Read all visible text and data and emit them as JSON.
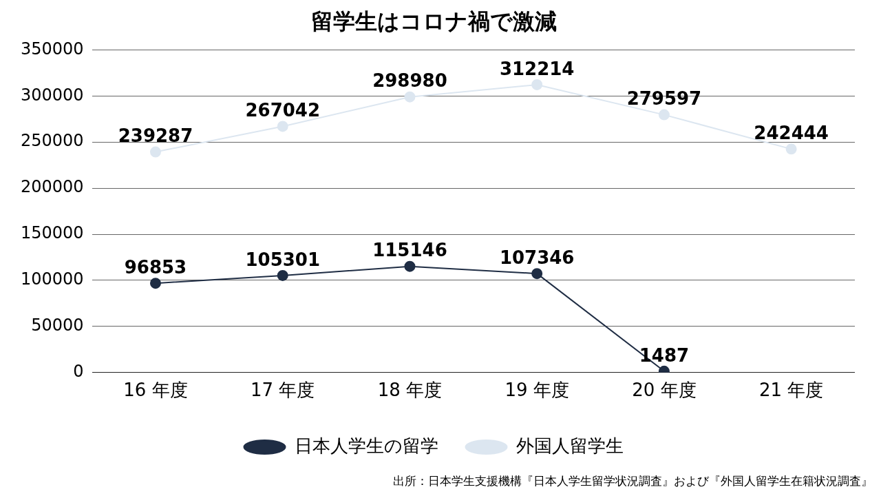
{
  "chart_data": {
    "type": "line",
    "title": "留学生はコロナ禍で激減",
    "categories": [
      "16 年度",
      "17 年度",
      "18 年度",
      "19 年度",
      "20 年度",
      "21 年度"
    ],
    "series": [
      {
        "name": "日本人学生の留学",
        "color": "#1f2d44",
        "values": [
          96853,
          105301,
          115146,
          107346,
          1487,
          null
        ]
      },
      {
        "name": "外国人留学生",
        "color": "#dce6f0",
        "values": [
          239287,
          267042,
          298980,
          312214,
          279597,
          242444
        ]
      }
    ],
    "ylim": [
      0,
      350000
    ],
    "yticks": [
      0,
      50000,
      100000,
      150000,
      200000,
      250000,
      300000,
      350000
    ],
    "grid": "y",
    "legend": "bottom",
    "marker": "circle",
    "line_style": "solid",
    "data_labels": true,
    "annotations": [
      "出所：日本学生支援機構『日本人学生留学状況調査』および『外国人留学生在籍状況調査』"
    ]
  }
}
